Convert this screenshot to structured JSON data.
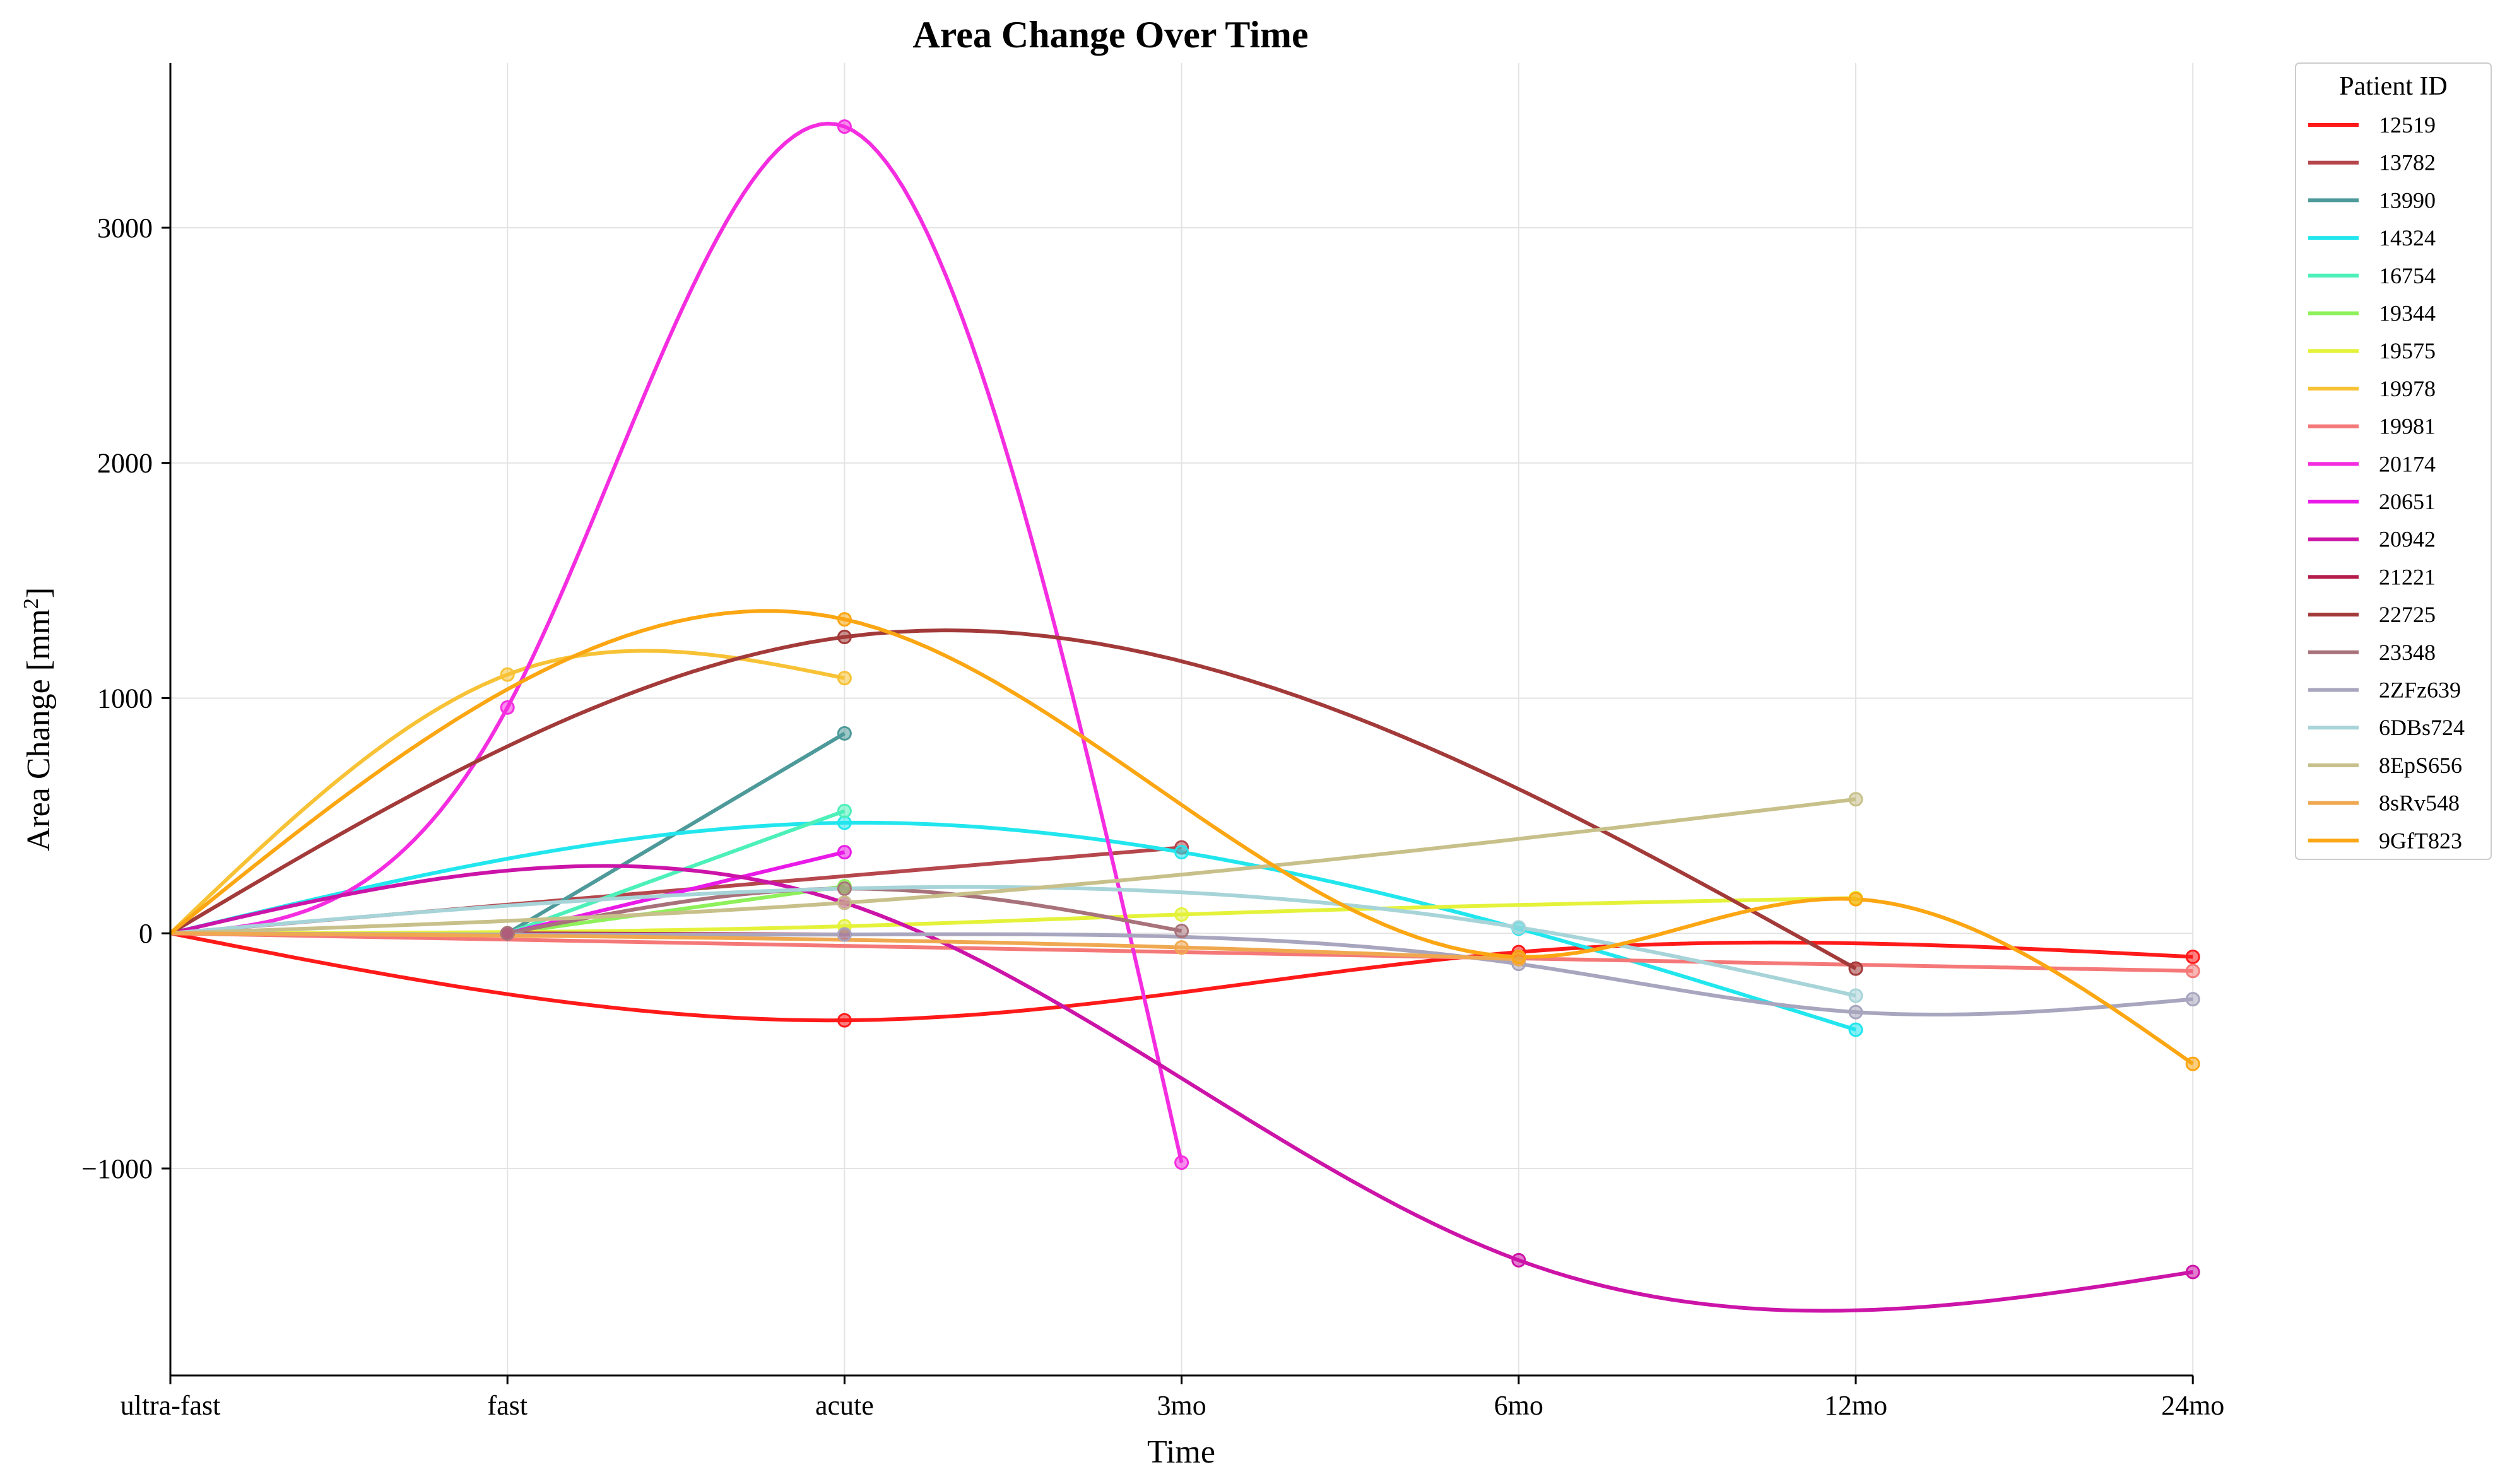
{
  "chart_data": {
    "type": "line",
    "title": "Area Change Over Time",
    "xlabel": "Time",
    "ylabel": "Area Change [mm",
    "ylabel_sup": "2",
    "ylabel_tail": "]",
    "categories": [
      "ultra-fast",
      "fast",
      "acute",
      "3mo",
      "6mo",
      "12mo",
      "24mo"
    ],
    "ylim": [
      -1880,
      3700
    ],
    "yticks": [
      -1000,
      0,
      1000,
      2000,
      3000
    ],
    "ytick_labels": [
      "−1000",
      "0",
      "1000",
      "2000",
      "3000"
    ],
    "grid": true,
    "legend_title": "Patient ID",
    "legend_position": "outside-right",
    "series": [
      {
        "name": "12519",
        "color": "#ff1a1a",
        "points": [
          [
            0,
            0
          ],
          [
            2,
            -370
          ],
          [
            4,
            -80
          ],
          [
            6,
            -100
          ]
        ]
      },
      {
        "name": "13782",
        "color": "#b5474d",
        "points": [
          [
            0,
            0
          ],
          [
            3,
            365
          ]
        ]
      },
      {
        "name": "13990",
        "color": "#4e9a9a",
        "points": [
          [
            1,
            0
          ],
          [
            2,
            850
          ]
        ]
      },
      {
        "name": "14324",
        "color": "#22e6ee",
        "points": [
          [
            0,
            0
          ],
          [
            2,
            470
          ],
          [
            3,
            345
          ],
          [
            4,
            20
          ],
          [
            5,
            -410
          ]
        ]
      },
      {
        "name": "16754",
        "color": "#4df0b8",
        "points": [
          [
            1,
            0
          ],
          [
            2,
            520
          ]
        ]
      },
      {
        "name": "19344",
        "color": "#8ef05a",
        "points": [
          [
            1,
            0
          ],
          [
            2,
            200
          ]
        ]
      },
      {
        "name": "19575",
        "color": "#e4f23a",
        "points": [
          [
            0,
            0
          ],
          [
            2,
            30
          ],
          [
            3,
            80
          ],
          [
            5,
            150
          ]
        ]
      },
      {
        "name": "19978",
        "color": "#f7c235",
        "points": [
          [
            0,
            0
          ],
          [
            1,
            1100
          ],
          [
            2,
            1085
          ]
        ]
      },
      {
        "name": "19981",
        "color": "#f57878",
        "points": [
          [
            0,
            0
          ],
          [
            6,
            -160
          ]
        ]
      },
      {
        "name": "20174",
        "color": "#f42de0",
        "points": [
          [
            0,
            0
          ],
          [
            1,
            960
          ],
          [
            2,
            3430
          ],
          [
            3,
            -975
          ]
        ]
      },
      {
        "name": "20651",
        "color": "#e91ae8",
        "points": [
          [
            1,
            0
          ],
          [
            2,
            345
          ]
        ]
      },
      {
        "name": "20942",
        "color": "#cc14a8",
        "points": [
          [
            0,
            0
          ],
          [
            2,
            130
          ],
          [
            4,
            -1390
          ],
          [
            6,
            -1440
          ]
        ]
      },
      {
        "name": "21221",
        "color": "#b31c4b",
        "points": [
          [
            1,
            0
          ],
          [
            2,
            -5
          ]
        ]
      },
      {
        "name": "22725",
        "color": "#a33a3a",
        "points": [
          [
            0,
            0
          ],
          [
            2,
            1260
          ],
          [
            5,
            -150
          ]
        ]
      },
      {
        "name": "23348",
        "color": "#a8727a",
        "points": [
          [
            1,
            0
          ],
          [
            2,
            190
          ],
          [
            3,
            10
          ]
        ]
      },
      {
        "name": "2ZFz639",
        "color": "#a8a5be",
        "points": [
          [
            0,
            0
          ],
          [
            2,
            -5
          ],
          [
            4,
            -130
          ],
          [
            5,
            -335
          ],
          [
            6,
            -280
          ]
        ]
      },
      {
        "name": "6DBs724",
        "color": "#a7d4d8",
        "points": [
          [
            0,
            0
          ],
          [
            4,
            25
          ],
          [
            5,
            -265
          ]
        ]
      },
      {
        "name": "8EpS656",
        "color": "#c8c08a",
        "points": [
          [
            0,
            0
          ],
          [
            2,
            130
          ],
          [
            5,
            570
          ]
        ]
      },
      {
        "name": "8sRv548",
        "color": "#f0a850",
        "points": [
          [
            0,
            0
          ],
          [
            3,
            -60
          ],
          [
            4,
            -110
          ]
        ]
      },
      {
        "name": "9GfT823",
        "color": "#fba612",
        "points": [
          [
            0,
            0
          ],
          [
            2,
            1335
          ],
          [
            4,
            -100
          ],
          [
            5,
            145
          ],
          [
            6,
            -555
          ]
        ]
      }
    ]
  }
}
